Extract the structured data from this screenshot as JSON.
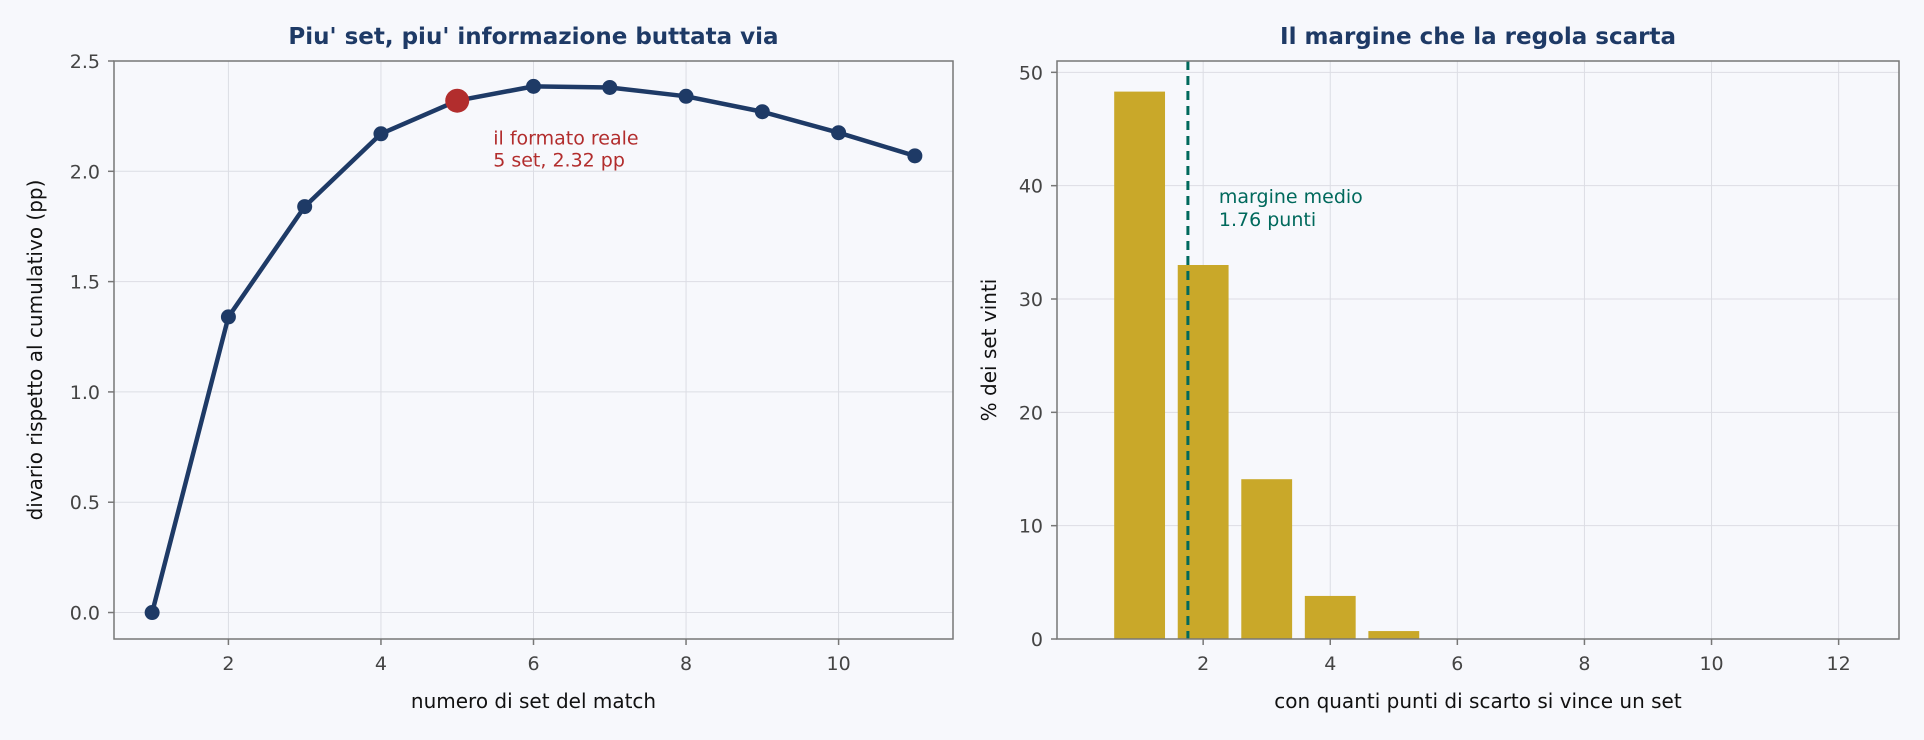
{
  "colors": {
    "background": "#f7f8fc",
    "title": "#1e3a66",
    "line": "#1e3a66",
    "highlight": "#b22d2d",
    "bar": "#c9a829",
    "mean_line": "#00695c"
  },
  "chart_data": [
    {
      "type": "line",
      "title": "Piu' set, piu' informazione buttata via",
      "xlabel": "numero di set del match",
      "ylabel": "divario rispetto al cumulativo (pp)",
      "xlim": [
        0.5,
        11.5
      ],
      "ylim": [
        -0.12,
        2.5
      ],
      "xticks": [
        2,
        4,
        6,
        8,
        10
      ],
      "yticks": [
        0.0,
        0.5,
        1.0,
        1.5,
        2.0,
        2.5
      ],
      "ytick_labels": [
        "0.0",
        "0.5",
        "1.0",
        "1.5",
        "2.0",
        "2.5"
      ],
      "grid": true,
      "x": [
        1,
        2,
        3,
        4,
        5,
        6,
        7,
        8,
        9,
        10,
        11
      ],
      "y": [
        0.0,
        1.34,
        1.84,
        2.17,
        2.32,
        2.385,
        2.38,
        2.34,
        2.27,
        2.175,
        2.07
      ],
      "highlight": {
        "x": 5,
        "y": 2.32,
        "label_line1": "il formato reale",
        "label_line2": "5 set, 2.32 pp"
      }
    },
    {
      "type": "bar",
      "title": "Il margine che la regola scarta",
      "xlabel": "con quanti punti di scarto si vince un set",
      "ylabel": "% dei set vinti",
      "xlim": [
        -0.3,
        12.95
      ],
      "ylim": [
        0,
        51
      ],
      "xticks": [
        2,
        4,
        6,
        8,
        10,
        12
      ],
      "yticks": [
        0,
        10,
        20,
        30,
        40,
        50
      ],
      "grid": true,
      "x": [
        1,
        2,
        3,
        4,
        5,
        6,
        7,
        8,
        9,
        10,
        11,
        12
      ],
      "values": [
        48.3,
        33.0,
        14.1,
        3.8,
        0.7,
        0,
        0,
        0,
        0,
        0,
        0,
        0
      ],
      "mean_line": {
        "x": 1.76,
        "label_line1": "margine medio",
        "label_line2": "1.76 punti"
      }
    }
  ]
}
